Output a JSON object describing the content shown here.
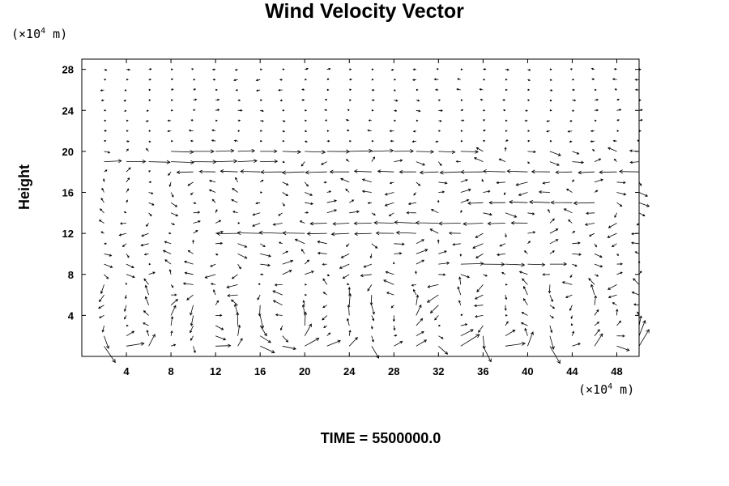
{
  "chart_data": {
    "type": "vector_field",
    "title": "Wind Velocity Vector",
    "ylabel": "Height",
    "x_unit_prefix": "(×10",
    "x_unit_exp": "4",
    "x_unit_suffix": " m)",
    "y_unit_prefix": "(×10",
    "y_unit_exp": "4",
    "y_unit_suffix": " m)",
    "xlim": [
      0,
      50
    ],
    "ylim": [
      0,
      29
    ],
    "x_ticks": [
      4,
      8,
      12,
      16,
      20,
      24,
      28,
      32,
      36,
      40,
      44,
      48
    ],
    "y_ticks": [
      4,
      8,
      12,
      16,
      20,
      24,
      28
    ],
    "grid_x_spacing": 2,
    "grid_y_spacing": 1,
    "strong_jets": [
      {
        "y": 20,
        "x": [
          8,
          34
        ],
        "direction": "east"
      },
      {
        "y": 19,
        "x": [
          2,
          16
        ],
        "direction": "east"
      },
      {
        "y": 18,
        "x": [
          10,
          50
        ],
        "direction": "west"
      },
      {
        "y": 15,
        "x": [
          36,
          46
        ],
        "direction": "west"
      },
      {
        "y": 13,
        "x": [
          22,
          40
        ],
        "direction": "west"
      },
      {
        "y": 12,
        "x": [
          14,
          30
        ],
        "direction": "west"
      },
      {
        "y": 9,
        "x": [
          34,
          42
        ],
        "direction": "east"
      }
    ],
    "low_level_vortex_centers": [
      4,
      12,
      18,
      22,
      28,
      33,
      38,
      44,
      48
    ]
  },
  "footer": {
    "time_label": "TIME = 5500000.0"
  }
}
